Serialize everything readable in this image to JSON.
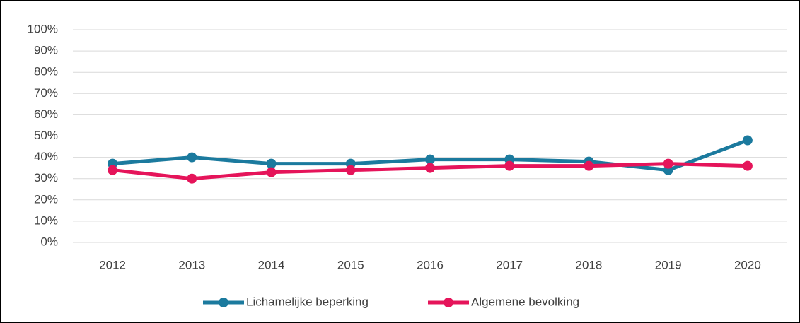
{
  "chart_data": {
    "type": "line",
    "categories": [
      "2012",
      "2013",
      "2014",
      "2015",
      "2016",
      "2017",
      "2018",
      "2019",
      "2020"
    ],
    "series": [
      {
        "name": "Lichamelijke beperking",
        "color": "#1b7a9e",
        "values": [
          37,
          40,
          37,
          37,
          39,
          39,
          38,
          34,
          48
        ]
      },
      {
        "name": "Algemene bevolking",
        "color": "#e5145a",
        "values": [
          34,
          30,
          33,
          34,
          35,
          36,
          36,
          37,
          36
        ]
      }
    ],
    "ylim": [
      0,
      100
    ],
    "yticks": [
      {
        "value": 0,
        "label": "0%"
      },
      {
        "value": 10,
        "label": "10%"
      },
      {
        "value": 20,
        "label": "20%"
      },
      {
        "value": 30,
        "label": "30%"
      },
      {
        "value": 40,
        "label": "40%"
      },
      {
        "value": 50,
        "label": "50%"
      },
      {
        "value": 60,
        "label": "60%"
      },
      {
        "value": 70,
        "label": "70%"
      },
      {
        "value": 80,
        "label": "80%"
      },
      {
        "value": 90,
        "label": "90%"
      },
      {
        "value": 100,
        "label": "100%"
      }
    ],
    "grid": true,
    "legend": "bottom"
  }
}
